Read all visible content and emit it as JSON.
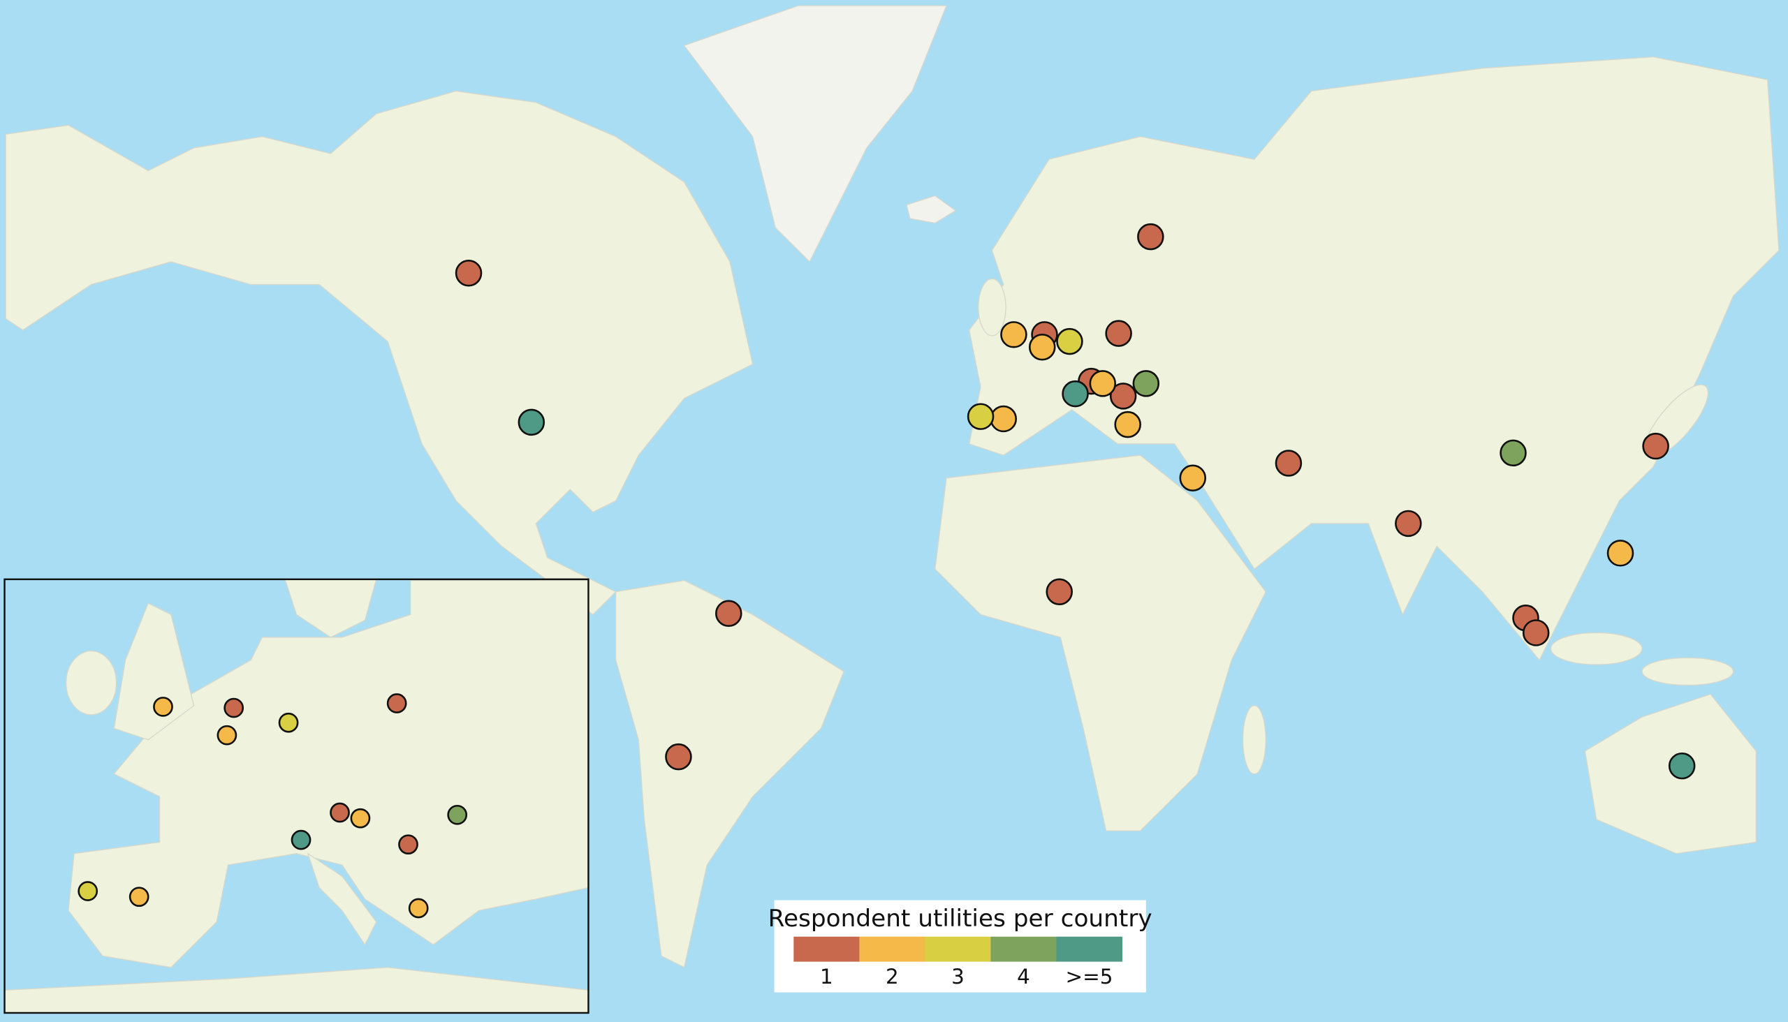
{
  "legend": {
    "title": "Respondent utilities per country",
    "items": [
      {
        "value": 1,
        "color": "#c8694e"
      },
      {
        "value": 2,
        "color": "#f5b94a"
      },
      {
        "value": 3,
        "color": "#d9cf42"
      },
      {
        "value": 4,
        "color": "#7ea35c"
      },
      {
        "value": 5,
        "label": ">=5",
        "color": "#4f9a86"
      }
    ]
  },
  "main_map": {
    "values": [
      1,
      1,
      1,
      1,
      1,
      1,
      1,
      1,
      1,
      1,
      1,
      1,
      1,
      1,
      2,
      2,
      2,
      2,
      2,
      2,
      2,
      3,
      3,
      4,
      4,
      5,
      5,
      5
    ]
  },
  "inset_map": {
    "values": [
      1,
      1,
      1,
      1,
      2,
      2,
      2,
      2,
      2,
      3,
      3,
      4,
      5
    ]
  }
}
